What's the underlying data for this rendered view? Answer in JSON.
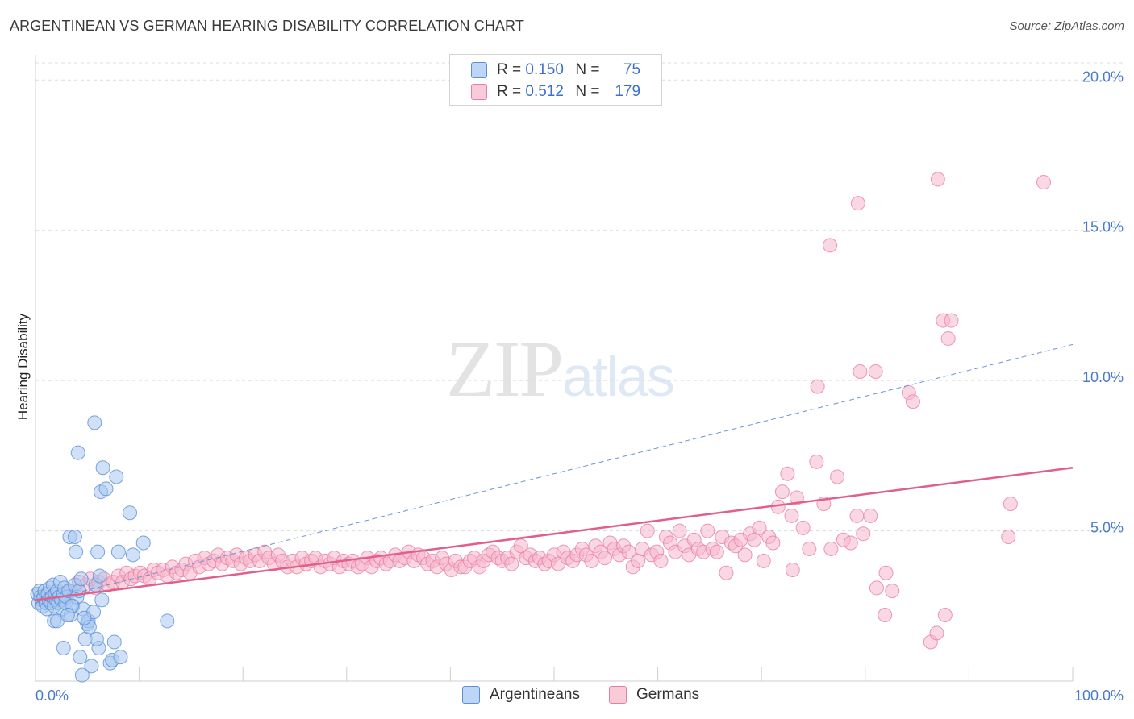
{
  "title": "ARGENTINEAN VS GERMAN HEARING DISABILITY CORRELATION CHART",
  "source": "Source: ZipAtlas.com",
  "watermark": {
    "zip": "ZIP",
    "atlas": "atlas"
  },
  "legend": {
    "rows": [
      {
        "r_label": "R =",
        "r_value": "0.150",
        "n_label": "N =",
        "n_value": "75",
        "color": "#a9c8f0"
      },
      {
        "r_label": "R =",
        "r_value": "0.512",
        "n_label": "N =",
        "n_value": "179",
        "color": "#f6b8cc"
      }
    ]
  },
  "bottom_legend": {
    "series0": "Argentineans",
    "series1": "Germans"
  },
  "colors": {
    "argentinean_fill": "#a9c8f0",
    "argentinean_stroke": "#5b8fd6",
    "german_fill": "#f6b8cc",
    "german_stroke": "#e87fa0",
    "german_trend": "#e0608a",
    "argentinean_trend": "#6a93d6",
    "grid": "#dcdcdc",
    "axis_label": "#4a7cc7"
  },
  "chart_data": {
    "type": "scatter",
    "title": "ARGENTINEAN VS GERMAN HEARING DISABILITY CORRELATION CHART",
    "xlabel": "",
    "ylabel": "Hearing Disability",
    "xlim": [
      0,
      100
    ],
    "ylim": [
      0,
      21
    ],
    "x_tick_labels": [
      "0.0%",
      "100.0%"
    ],
    "y_ticks": [
      5,
      10,
      15,
      20
    ],
    "y_tick_labels": [
      "5.0%",
      "10.0%",
      "15.0%",
      "20.0%"
    ],
    "grid": true,
    "series": [
      {
        "name": "Argentineans",
        "trend": {
          "x": [
            0,
            100
          ],
          "y": [
            2.6,
            11.2
          ],
          "style": "dashed"
        },
        "points": [
          [
            0.2,
            2.9
          ],
          [
            0.3,
            2.6
          ],
          [
            0.4,
            3.0
          ],
          [
            0.5,
            2.8
          ],
          [
            0.6,
            2.7
          ],
          [
            0.7,
            2.5
          ],
          [
            0.8,
            2.8
          ],
          [
            0.9,
            3.0
          ],
          [
            1.0,
            2.6
          ],
          [
            1.1,
            2.4
          ],
          [
            1.2,
            2.9
          ],
          [
            1.3,
            2.7
          ],
          [
            1.4,
            3.1
          ],
          [
            1.5,
            2.6
          ],
          [
            1.6,
            2.8
          ],
          [
            1.7,
            3.2
          ],
          [
            1.8,
            2.5
          ],
          [
            1.9,
            2.9
          ],
          [
            2.0,
            2.7
          ],
          [
            2.1,
            3.0
          ],
          [
            2.2,
            2.6
          ],
          [
            2.3,
            2.8
          ],
          [
            2.4,
            3.3
          ],
          [
            2.5,
            2.7
          ],
          [
            2.6,
            2.4
          ],
          [
            2.7,
            2.9
          ],
          [
            2.8,
            3.1
          ],
          [
            2.9,
            2.6
          ],
          [
            3.0,
            2.8
          ],
          [
            3.2,
            3.0
          ],
          [
            3.4,
            2.2
          ],
          [
            3.6,
            2.5
          ],
          [
            3.8,
            3.2
          ],
          [
            4.0,
            2.8
          ],
          [
            4.2,
            3.0
          ],
          [
            1.8,
            2.0
          ],
          [
            2.1,
            2.0
          ],
          [
            3.3,
            4.8
          ],
          [
            3.8,
            4.8
          ],
          [
            3.9,
            4.3
          ],
          [
            4.1,
            7.6
          ],
          [
            4.4,
            3.4
          ],
          [
            4.6,
            2.4
          ],
          [
            4.8,
            1.4
          ],
          [
            5.0,
            1.9
          ],
          [
            5.1,
            2.0
          ],
          [
            5.2,
            1.8
          ],
          [
            5.4,
            0.5
          ],
          [
            5.6,
            2.3
          ],
          [
            5.8,
            3.2
          ],
          [
            5.7,
            8.6
          ],
          [
            6.0,
            4.3
          ],
          [
            6.2,
            3.5
          ],
          [
            6.4,
            2.7
          ],
          [
            6.3,
            6.3
          ],
          [
            6.5,
            7.1
          ],
          [
            6.8,
            6.4
          ],
          [
            7.2,
            0.6
          ],
          [
            7.4,
            0.7
          ],
          [
            7.6,
            1.3
          ],
          [
            7.8,
            6.8
          ],
          [
            8.0,
            4.3
          ],
          [
            8.2,
            0.8
          ],
          [
            9.1,
            5.6
          ],
          [
            9.4,
            4.2
          ],
          [
            10.4,
            4.6
          ],
          [
            12.7,
            2.0
          ],
          [
            3.5,
            2.5
          ],
          [
            2.7,
            1.1
          ],
          [
            4.3,
            0.8
          ],
          [
            6.1,
            1.1
          ],
          [
            3.1,
            2.2
          ],
          [
            4.7,
            2.1
          ],
          [
            5.9,
            1.4
          ],
          [
            4.5,
            0.2
          ]
        ]
      },
      {
        "name": "Germans",
        "trend": {
          "x": [
            0,
            100
          ],
          "y": [
            2.7,
            7.1
          ],
          "style": "solid"
        },
        "points": [
          [
            3.4,
            3.0
          ],
          [
            4.2,
            3.3
          ],
          [
            4.9,
            3.2
          ],
          [
            5.3,
            3.4
          ],
          [
            5.8,
            3.1
          ],
          [
            6.1,
            3.3
          ],
          [
            6.6,
            3.4
          ],
          [
            7.0,
            3.2
          ],
          [
            7.5,
            3.3
          ],
          [
            8.0,
            3.5
          ],
          [
            8.4,
            3.3
          ],
          [
            8.8,
            3.6
          ],
          [
            9.2,
            3.4
          ],
          [
            9.6,
            3.5
          ],
          [
            10.1,
            3.6
          ],
          [
            10.5,
            3.5
          ],
          [
            11.0,
            3.4
          ],
          [
            11.4,
            3.7
          ],
          [
            11.8,
            3.6
          ],
          [
            12.3,
            3.7
          ],
          [
            12.7,
            3.5
          ],
          [
            13.2,
            3.8
          ],
          [
            13.6,
            3.6
          ],
          [
            14.1,
            3.7
          ],
          [
            14.5,
            3.9
          ],
          [
            14.9,
            3.6
          ],
          [
            15.4,
            4.0
          ],
          [
            15.8,
            3.8
          ],
          [
            16.3,
            4.1
          ],
          [
            16.7,
            3.9
          ],
          [
            17.2,
            4.0
          ],
          [
            17.6,
            4.2
          ],
          [
            18.0,
            3.9
          ],
          [
            18.5,
            4.1
          ],
          [
            19.0,
            4.0
          ],
          [
            19.4,
            4.2
          ],
          [
            19.8,
            3.9
          ],
          [
            20.3,
            4.1
          ],
          [
            20.7,
            4.0
          ],
          [
            21.2,
            4.2
          ],
          [
            21.6,
            4.0
          ],
          [
            22.1,
            4.3
          ],
          [
            22.5,
            4.1
          ],
          [
            23.0,
            3.9
          ],
          [
            23.4,
            4.2
          ],
          [
            23.8,
            4.0
          ],
          [
            24.3,
            3.8
          ],
          [
            24.8,
            4.0
          ],
          [
            25.2,
            3.8
          ],
          [
            25.7,
            4.1
          ],
          [
            26.1,
            3.9
          ],
          [
            26.6,
            4.0
          ],
          [
            27.0,
            4.1
          ],
          [
            27.5,
            3.8
          ],
          [
            27.9,
            4.0
          ],
          [
            28.4,
            3.9
          ],
          [
            28.8,
            4.1
          ],
          [
            29.3,
            3.8
          ],
          [
            29.7,
            4.0
          ],
          [
            30.2,
            3.9
          ],
          [
            30.6,
            4.0
          ],
          [
            31.1,
            3.8
          ],
          [
            31.5,
            3.9
          ],
          [
            32.0,
            4.1
          ],
          [
            32.4,
            3.8
          ],
          [
            32.9,
            4.0
          ],
          [
            33.3,
            4.1
          ],
          [
            33.8,
            3.9
          ],
          [
            34.2,
            4.0
          ],
          [
            34.7,
            4.2
          ],
          [
            35.1,
            4.0
          ],
          [
            35.6,
            4.1
          ],
          [
            36.0,
            4.3
          ],
          [
            36.5,
            4.0
          ],
          [
            36.9,
            4.2
          ],
          [
            37.4,
            4.1
          ],
          [
            37.8,
            3.9
          ],
          [
            38.3,
            4.0
          ],
          [
            38.7,
            3.8
          ],
          [
            39.2,
            4.1
          ],
          [
            39.6,
            3.9
          ],
          [
            40.1,
            3.7
          ],
          [
            40.5,
            4.0
          ],
          [
            41.0,
            3.8
          ],
          [
            41.4,
            3.8
          ],
          [
            41.9,
            4.0
          ],
          [
            42.3,
            4.1
          ],
          [
            42.8,
            3.8
          ],
          [
            43.2,
            4.0
          ],
          [
            43.7,
            4.2
          ],
          [
            44.1,
            4.3
          ],
          [
            44.6,
            4.1
          ],
          [
            45.0,
            4.0
          ],
          [
            45.5,
            4.1
          ],
          [
            45.9,
            3.9
          ],
          [
            46.4,
            4.3
          ],
          [
            46.8,
            4.5
          ],
          [
            47.3,
            4.1
          ],
          [
            47.7,
            4.2
          ],
          [
            48.2,
            4.0
          ],
          [
            48.6,
            4.1
          ],
          [
            49.1,
            3.9
          ],
          [
            49.5,
            4.0
          ],
          [
            50.0,
            4.2
          ],
          [
            50.4,
            3.9
          ],
          [
            50.9,
            4.3
          ],
          [
            51.3,
            4.1
          ],
          [
            51.8,
            4.0
          ],
          [
            52.2,
            4.2
          ],
          [
            52.7,
            4.4
          ],
          [
            53.1,
            4.2
          ],
          [
            53.6,
            4.0
          ],
          [
            54.0,
            4.5
          ],
          [
            54.5,
            4.3
          ],
          [
            54.9,
            4.1
          ],
          [
            55.4,
            4.6
          ],
          [
            55.8,
            4.4
          ],
          [
            56.3,
            4.2
          ],
          [
            56.7,
            4.5
          ],
          [
            57.2,
            4.3
          ],
          [
            57.6,
            3.8
          ],
          [
            58.1,
            4.0
          ],
          [
            58.5,
            4.4
          ],
          [
            59.0,
            5.0
          ],
          [
            59.4,
            4.2
          ],
          [
            59.9,
            4.3
          ],
          [
            60.3,
            4.0
          ],
          [
            60.8,
            4.8
          ],
          [
            61.2,
            4.6
          ],
          [
            61.7,
            4.3
          ],
          [
            62.1,
            5.0
          ],
          [
            62.6,
            4.5
          ],
          [
            63.0,
            4.2
          ],
          [
            63.5,
            4.7
          ],
          [
            63.9,
            4.4
          ],
          [
            64.4,
            4.3
          ],
          [
            64.8,
            5.0
          ],
          [
            65.3,
            4.4
          ],
          [
            65.7,
            4.3
          ],
          [
            66.2,
            4.8
          ],
          [
            66.6,
            3.6
          ],
          [
            67.1,
            4.6
          ],
          [
            67.5,
            4.5
          ],
          [
            68.0,
            4.7
          ],
          [
            68.4,
            4.2
          ],
          [
            68.9,
            4.9
          ],
          [
            69.3,
            4.7
          ],
          [
            69.8,
            5.1
          ],
          [
            70.2,
            4.0
          ],
          [
            70.7,
            4.8
          ],
          [
            71.1,
            4.6
          ],
          [
            71.6,
            5.8
          ],
          [
            72.0,
            6.3
          ],
          [
            72.5,
            6.9
          ],
          [
            72.9,
            5.5
          ],
          [
            73.4,
            6.1
          ],
          [
            74.0,
            5.1
          ],
          [
            74.6,
            4.4
          ],
          [
            75.3,
            7.3
          ],
          [
            76.0,
            5.9
          ],
          [
            76.7,
            4.4
          ],
          [
            77.3,
            6.8
          ],
          [
            77.9,
            4.7
          ],
          [
            78.6,
            4.6
          ],
          [
            79.2,
            5.5
          ],
          [
            79.8,
            4.9
          ],
          [
            80.5,
            5.5
          ],
          [
            81.1,
            3.1
          ],
          [
            81.9,
            2.2
          ],
          [
            82.6,
            3.0
          ],
          [
            84.2,
            9.6
          ],
          [
            84.6,
            9.3
          ],
          [
            86.3,
            1.3
          ],
          [
            86.9,
            1.6
          ],
          [
            87.7,
            2.2
          ],
          [
            87.5,
            12.0
          ],
          [
            88.3,
            12.0
          ],
          [
            88.0,
            11.4
          ],
          [
            79.5,
            10.3
          ],
          [
            81.0,
            10.3
          ],
          [
            75.4,
            9.8
          ],
          [
            79.3,
            15.9
          ],
          [
            76.6,
            14.5
          ],
          [
            87.0,
            16.7
          ],
          [
            97.2,
            16.6
          ],
          [
            94.0,
            5.9
          ],
          [
            93.8,
            4.8
          ],
          [
            82.0,
            3.6
          ],
          [
            73.0,
            3.7
          ]
        ]
      }
    ]
  }
}
